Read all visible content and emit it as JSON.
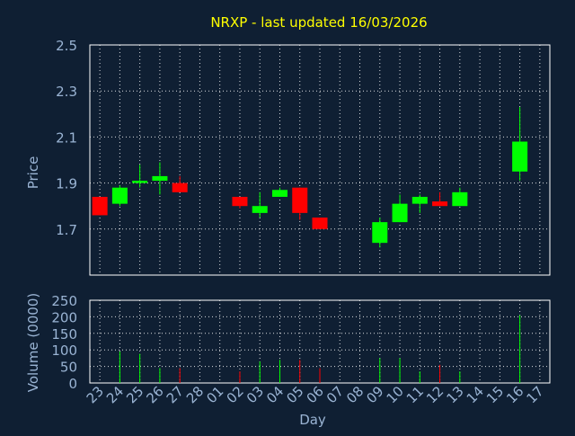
{
  "chart_data": {
    "type": "candlestick",
    "title": "NRXP - last updated 16/03/2026",
    "xlabel": "Day",
    "price_axis": {
      "ylabel": "Price",
      "ylim": [
        1.5,
        2.5
      ],
      "ticks": [
        "2.5",
        "2.3",
        "2.1",
        "1.9",
        "1.7"
      ],
      "tick_values": [
        2.5,
        2.3,
        2.1,
        1.9,
        1.7
      ]
    },
    "volume_axis": {
      "ylabel": "Volume (0000)",
      "ylim": [
        0,
        250
      ],
      "ticks": [
        "250",
        "200",
        "150",
        "100",
        "50",
        "0"
      ],
      "tick_values": [
        250,
        200,
        150,
        100,
        50,
        0
      ]
    },
    "x_ticks": [
      "23",
      "24",
      "25",
      "26",
      "27",
      "28",
      "01",
      "02",
      "03",
      "04",
      "05",
      "06",
      "07",
      "08",
      "09",
      "10",
      "11",
      "12",
      "13",
      "14",
      "15",
      "16",
      "17"
    ],
    "grid": true,
    "colors": {
      "background": "#0f1f33",
      "up": "#00ff00",
      "down": "#ff0000",
      "grid": "#ffffff",
      "axis_text": "#9ab4d4",
      "title": "#ffff00"
    },
    "candles": [
      {
        "day": "23",
        "open": 1.84,
        "close": 1.76,
        "high": 1.84,
        "low": 1.76,
        "volume": 0
      },
      {
        "day": "24",
        "open": 1.81,
        "close": 1.88,
        "high": 1.89,
        "low": 1.8,
        "volume": 95
      },
      {
        "day": "25",
        "open": 1.9,
        "close": 1.91,
        "high": 1.98,
        "low": 1.88,
        "volume": 88
      },
      {
        "day": "26",
        "open": 1.91,
        "close": 1.93,
        "high": 1.99,
        "low": 1.85,
        "volume": 45
      },
      {
        "day": "27",
        "open": 1.9,
        "close": 1.86,
        "high": 1.93,
        "low": 1.86,
        "volume": 45
      },
      {
        "day": "02",
        "open": 1.84,
        "close": 1.8,
        "high": 1.84,
        "low": 1.79,
        "volume": 35
      },
      {
        "day": "03",
        "open": 1.77,
        "close": 1.8,
        "high": 1.86,
        "low": 1.75,
        "volume": 65
      },
      {
        "day": "04",
        "open": 1.84,
        "close": 1.87,
        "high": 1.88,
        "low": 1.84,
        "volume": 70
      },
      {
        "day": "05",
        "open": 1.88,
        "close": 1.77,
        "high": 1.88,
        "low": 1.74,
        "volume": 70
      },
      {
        "day": "06",
        "open": 1.75,
        "close": 1.7,
        "high": 1.75,
        "low": 1.7,
        "volume": 45
      },
      {
        "day": "09",
        "open": 1.64,
        "close": 1.73,
        "high": 1.75,
        "low": 1.62,
        "volume": 75
      },
      {
        "day": "10",
        "open": 1.73,
        "close": 1.81,
        "high": 1.85,
        "low": 1.73,
        "volume": 75
      },
      {
        "day": "11",
        "open": 1.81,
        "close": 1.84,
        "high": 1.85,
        "low": 1.77,
        "volume": 35
      },
      {
        "day": "12",
        "open": 1.82,
        "close": 1.8,
        "high": 1.86,
        "low": 1.8,
        "volume": 55
      },
      {
        "day": "13",
        "open": 1.8,
        "close": 1.86,
        "high": 1.88,
        "low": 1.8,
        "volume": 35
      },
      {
        "day": "16",
        "open": 1.95,
        "close": 2.08,
        "high": 2.23,
        "low": 1.91,
        "volume": 205
      }
    ]
  }
}
